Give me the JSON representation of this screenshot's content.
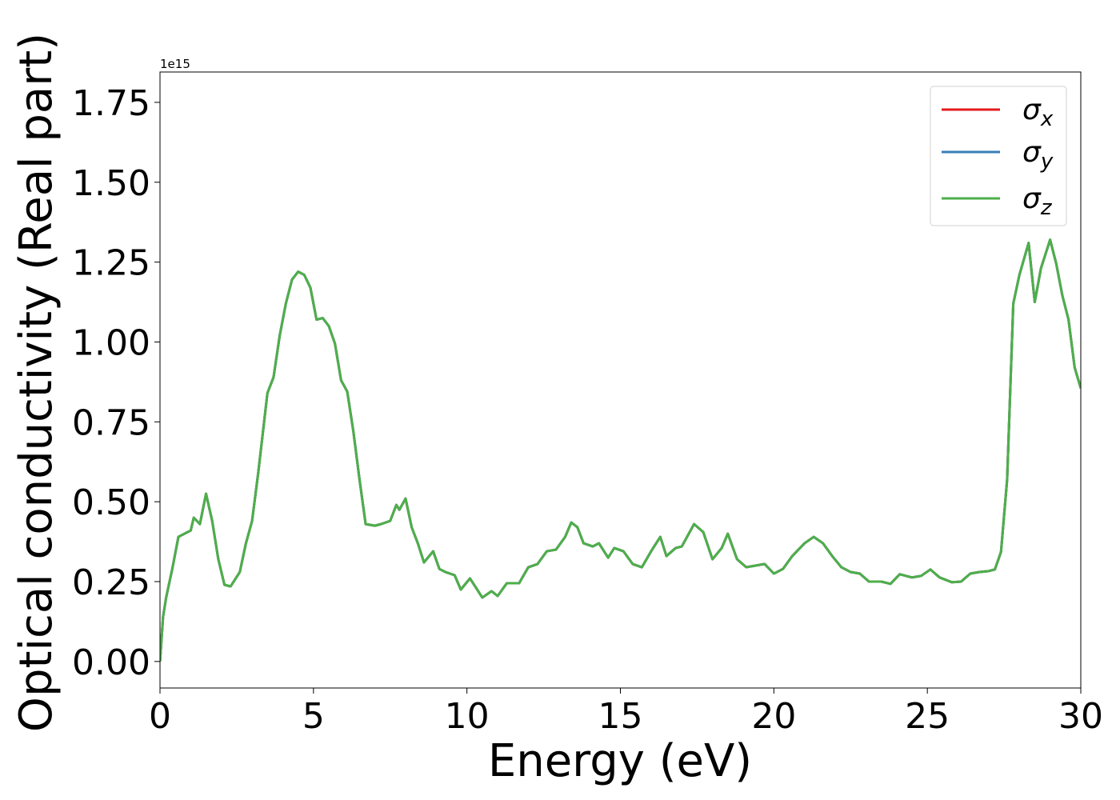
{
  "chart_data": {
    "type": "line",
    "x_label": "Energy (eV)",
    "y_label": "Optical conductivity (Real part)",
    "y_offset_text": "1e15",
    "xlim": [
      0,
      30
    ],
    "ylim": [
      -0.083,
      1.845
    ],
    "xticks": [
      0,
      5,
      10,
      15,
      20,
      25,
      30
    ],
    "yticks": [
      {
        "value": 0,
        "label": "0.00"
      },
      {
        "value": 0.25,
        "label": "0.25"
      },
      {
        "value": 0.5,
        "label": "0.50"
      },
      {
        "value": 0.75,
        "label": "0.75"
      },
      {
        "value": 1,
        "label": "1.00"
      },
      {
        "value": 1.25,
        "label": "1.25"
      },
      {
        "value": 1.5,
        "label": "1.50"
      },
      {
        "value": 1.75,
        "label": "1.75"
      }
    ],
    "legend": "upper right",
    "x": [
      0,
      0.1,
      0.2,
      0.4,
      0.6,
      0.8,
      1.0,
      1.1,
      1.3,
      1.5,
      1.7,
      1.9,
      2.1,
      2.3,
      2.6,
      2.8,
      3.0,
      3.2,
      3.5,
      3.7,
      3.9,
      4.1,
      4.3,
      4.5,
      4.7,
      4.9,
      5.1,
      5.3,
      5.5,
      5.7,
      5.9,
      6.1,
      6.3,
      6.5,
      6.7,
      7.0,
      7.2,
      7.5,
      7.7,
      7.8,
      8.0,
      8.2,
      8.4,
      8.6,
      8.9,
      9.1,
      9.3,
      9.6,
      9.8,
      10.1,
      10.3,
      10.5,
      10.8,
      11.0,
      11.3,
      11.7,
      12.0,
      12.3,
      12.6,
      12.9,
      13.2,
      13.4,
      13.6,
      13.8,
      14.1,
      14.3,
      14.6,
      14.8,
      15.1,
      15.4,
      15.7,
      16.0,
      16.3,
      16.5,
      16.8,
      17.0,
      17.4,
      17.7,
      18.0,
      18.3,
      18.5,
      18.8,
      19.1,
      19.4,
      19.7,
      20.0,
      20.3,
      20.6,
      21.0,
      21.3,
      21.6,
      21.9,
      22.2,
      22.5,
      22.8,
      23.1,
      23.5,
      23.8,
      24.1,
      24.5,
      24.8,
      25.1,
      25.4,
      25.8,
      26.1,
      26.4,
      26.7,
      27.0,
      27.2,
      27.4,
      27.6,
      27.8,
      28.0,
      28.3,
      28.5,
      28.7,
      29.0,
      29.2,
      29.4,
      29.6,
      29.8,
      30.0
    ],
    "series": [
      {
        "name": "σx",
        "color": "#e41a1c",
        "values": [
          0,
          0.14,
          0.2,
          0.29,
          0.39,
          0.4,
          0.41,
          0.45,
          0.43,
          0.525,
          0.44,
          0.32,
          0.24,
          0.235,
          0.28,
          0.37,
          0.44,
          0.59,
          0.84,
          0.89,
          1.02,
          1.12,
          1.195,
          1.22,
          1.21,
          1.17,
          1.07,
          1.075,
          1.05,
          0.995,
          0.88,
          0.845,
          0.72,
          0.57,
          0.43,
          0.425,
          0.43,
          0.44,
          0.49,
          0.475,
          0.51,
          0.42,
          0.37,
          0.31,
          0.345,
          0.29,
          0.28,
          0.27,
          0.225,
          0.26,
          0.23,
          0.2,
          0.22,
          0.205,
          0.245,
          0.245,
          0.295,
          0.305,
          0.345,
          0.35,
          0.39,
          0.435,
          0.42,
          0.37,
          0.36,
          0.37,
          0.325,
          0.355,
          0.345,
          0.305,
          0.295,
          0.345,
          0.39,
          0.33,
          0.355,
          0.36,
          0.43,
          0.405,
          0.32,
          0.355,
          0.4,
          0.32,
          0.295,
          0.3,
          0.305,
          0.275,
          0.29,
          0.33,
          0.37,
          0.39,
          0.37,
          0.33,
          0.295,
          0.28,
          0.275,
          0.25,
          0.25,
          0.243,
          0.273,
          0.263,
          0.268,
          0.288,
          0.263,
          0.248,
          0.25,
          0.275,
          0.28,
          0.283,
          0.288,
          0.343,
          0.57,
          1.12,
          1.21,
          1.31,
          1.125,
          1.23,
          1.32,
          1.245,
          1.145,
          1.07,
          0.92,
          0.855
        ]
      },
      {
        "name": "σy",
        "color": "#377eb8",
        "values": [
          0,
          0.14,
          0.2,
          0.29,
          0.39,
          0.4,
          0.41,
          0.45,
          0.43,
          0.525,
          0.44,
          0.32,
          0.24,
          0.235,
          0.28,
          0.37,
          0.44,
          0.59,
          0.84,
          0.89,
          1.02,
          1.12,
          1.195,
          1.22,
          1.21,
          1.17,
          1.07,
          1.075,
          1.05,
          0.995,
          0.88,
          0.845,
          0.72,
          0.57,
          0.43,
          0.425,
          0.43,
          0.44,
          0.49,
          0.475,
          0.51,
          0.42,
          0.37,
          0.31,
          0.345,
          0.29,
          0.28,
          0.27,
          0.225,
          0.26,
          0.23,
          0.2,
          0.22,
          0.205,
          0.245,
          0.245,
          0.295,
          0.305,
          0.345,
          0.35,
          0.39,
          0.435,
          0.42,
          0.37,
          0.36,
          0.37,
          0.325,
          0.355,
          0.345,
          0.305,
          0.295,
          0.345,
          0.39,
          0.33,
          0.355,
          0.36,
          0.43,
          0.405,
          0.32,
          0.355,
          0.4,
          0.32,
          0.295,
          0.3,
          0.305,
          0.275,
          0.29,
          0.33,
          0.37,
          0.39,
          0.37,
          0.33,
          0.295,
          0.28,
          0.275,
          0.25,
          0.25,
          0.243,
          0.273,
          0.263,
          0.268,
          0.288,
          0.263,
          0.248,
          0.25,
          0.275,
          0.28,
          0.283,
          0.288,
          0.343,
          0.57,
          1.12,
          1.21,
          1.31,
          1.125,
          1.23,
          1.32,
          1.245,
          1.145,
          1.07,
          0.92,
          0.855
        ]
      },
      {
        "name": "σz",
        "color": "#4daf4a",
        "values": [
          0,
          0.14,
          0.2,
          0.29,
          0.39,
          0.4,
          0.41,
          0.45,
          0.43,
          0.525,
          0.44,
          0.32,
          0.24,
          0.235,
          0.28,
          0.37,
          0.44,
          0.59,
          0.84,
          0.89,
          1.02,
          1.12,
          1.195,
          1.22,
          1.21,
          1.17,
          1.07,
          1.075,
          1.05,
          0.995,
          0.88,
          0.845,
          0.72,
          0.57,
          0.43,
          0.425,
          0.43,
          0.44,
          0.49,
          0.475,
          0.51,
          0.42,
          0.37,
          0.31,
          0.345,
          0.29,
          0.28,
          0.27,
          0.225,
          0.26,
          0.23,
          0.2,
          0.22,
          0.205,
          0.245,
          0.245,
          0.295,
          0.305,
          0.345,
          0.35,
          0.39,
          0.435,
          0.42,
          0.37,
          0.36,
          0.37,
          0.325,
          0.355,
          0.345,
          0.305,
          0.295,
          0.345,
          0.39,
          0.33,
          0.355,
          0.36,
          0.43,
          0.405,
          0.32,
          0.355,
          0.4,
          0.32,
          0.295,
          0.3,
          0.305,
          0.275,
          0.29,
          0.33,
          0.37,
          0.39,
          0.37,
          0.33,
          0.295,
          0.28,
          0.275,
          0.25,
          0.25,
          0.243,
          0.273,
          0.263,
          0.268,
          0.288,
          0.263,
          0.248,
          0.25,
          0.275,
          0.28,
          0.283,
          0.288,
          0.343,
          0.57,
          1.12,
          1.21,
          1.31,
          1.125,
          1.23,
          1.32,
          1.245,
          1.145,
          1.07,
          0.92,
          0.855
        ]
      }
    ]
  }
}
